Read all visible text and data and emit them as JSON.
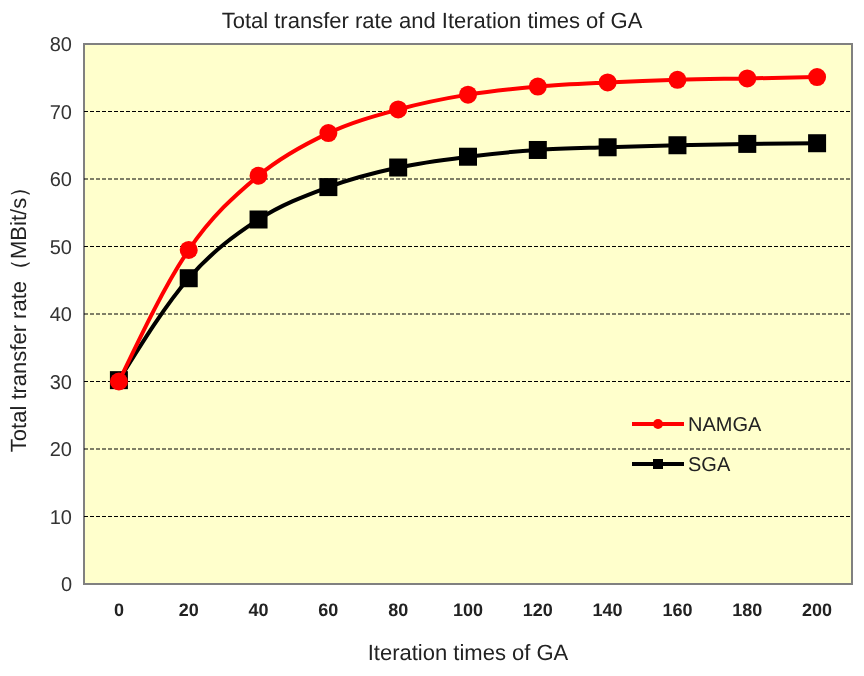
{
  "chart_data": {
    "type": "line",
    "title": "Total transfer rate and Iteration times of GA",
    "xlabel": "Iteration times of GA",
    "ylabel": "Total transfer rate（MBit/s）",
    "categories": [
      "0",
      "20",
      "40",
      "60",
      "80",
      "100",
      "120",
      "140",
      "160",
      "180",
      "200"
    ],
    "series": [
      {
        "name": "NAMGA",
        "color": "#ff0000",
        "marker": "circle",
        "values": [
          30,
          49.5,
          60.5,
          66.8,
          70.3,
          72.5,
          73.7,
          74.3,
          74.7,
          74.9,
          75.1
        ]
      },
      {
        "name": "SGA",
        "color": "#000000",
        "marker": "square",
        "values": [
          30.2,
          45.3,
          54,
          58.8,
          61.7,
          63.3,
          64.3,
          64.7,
          65,
          65.2,
          65.3
        ]
      }
    ],
    "ylim": [
      0,
      80
    ],
    "yticks": [
      0,
      10,
      20,
      30,
      40,
      50,
      60,
      70,
      80
    ],
    "grid": "y",
    "legend": "right"
  }
}
